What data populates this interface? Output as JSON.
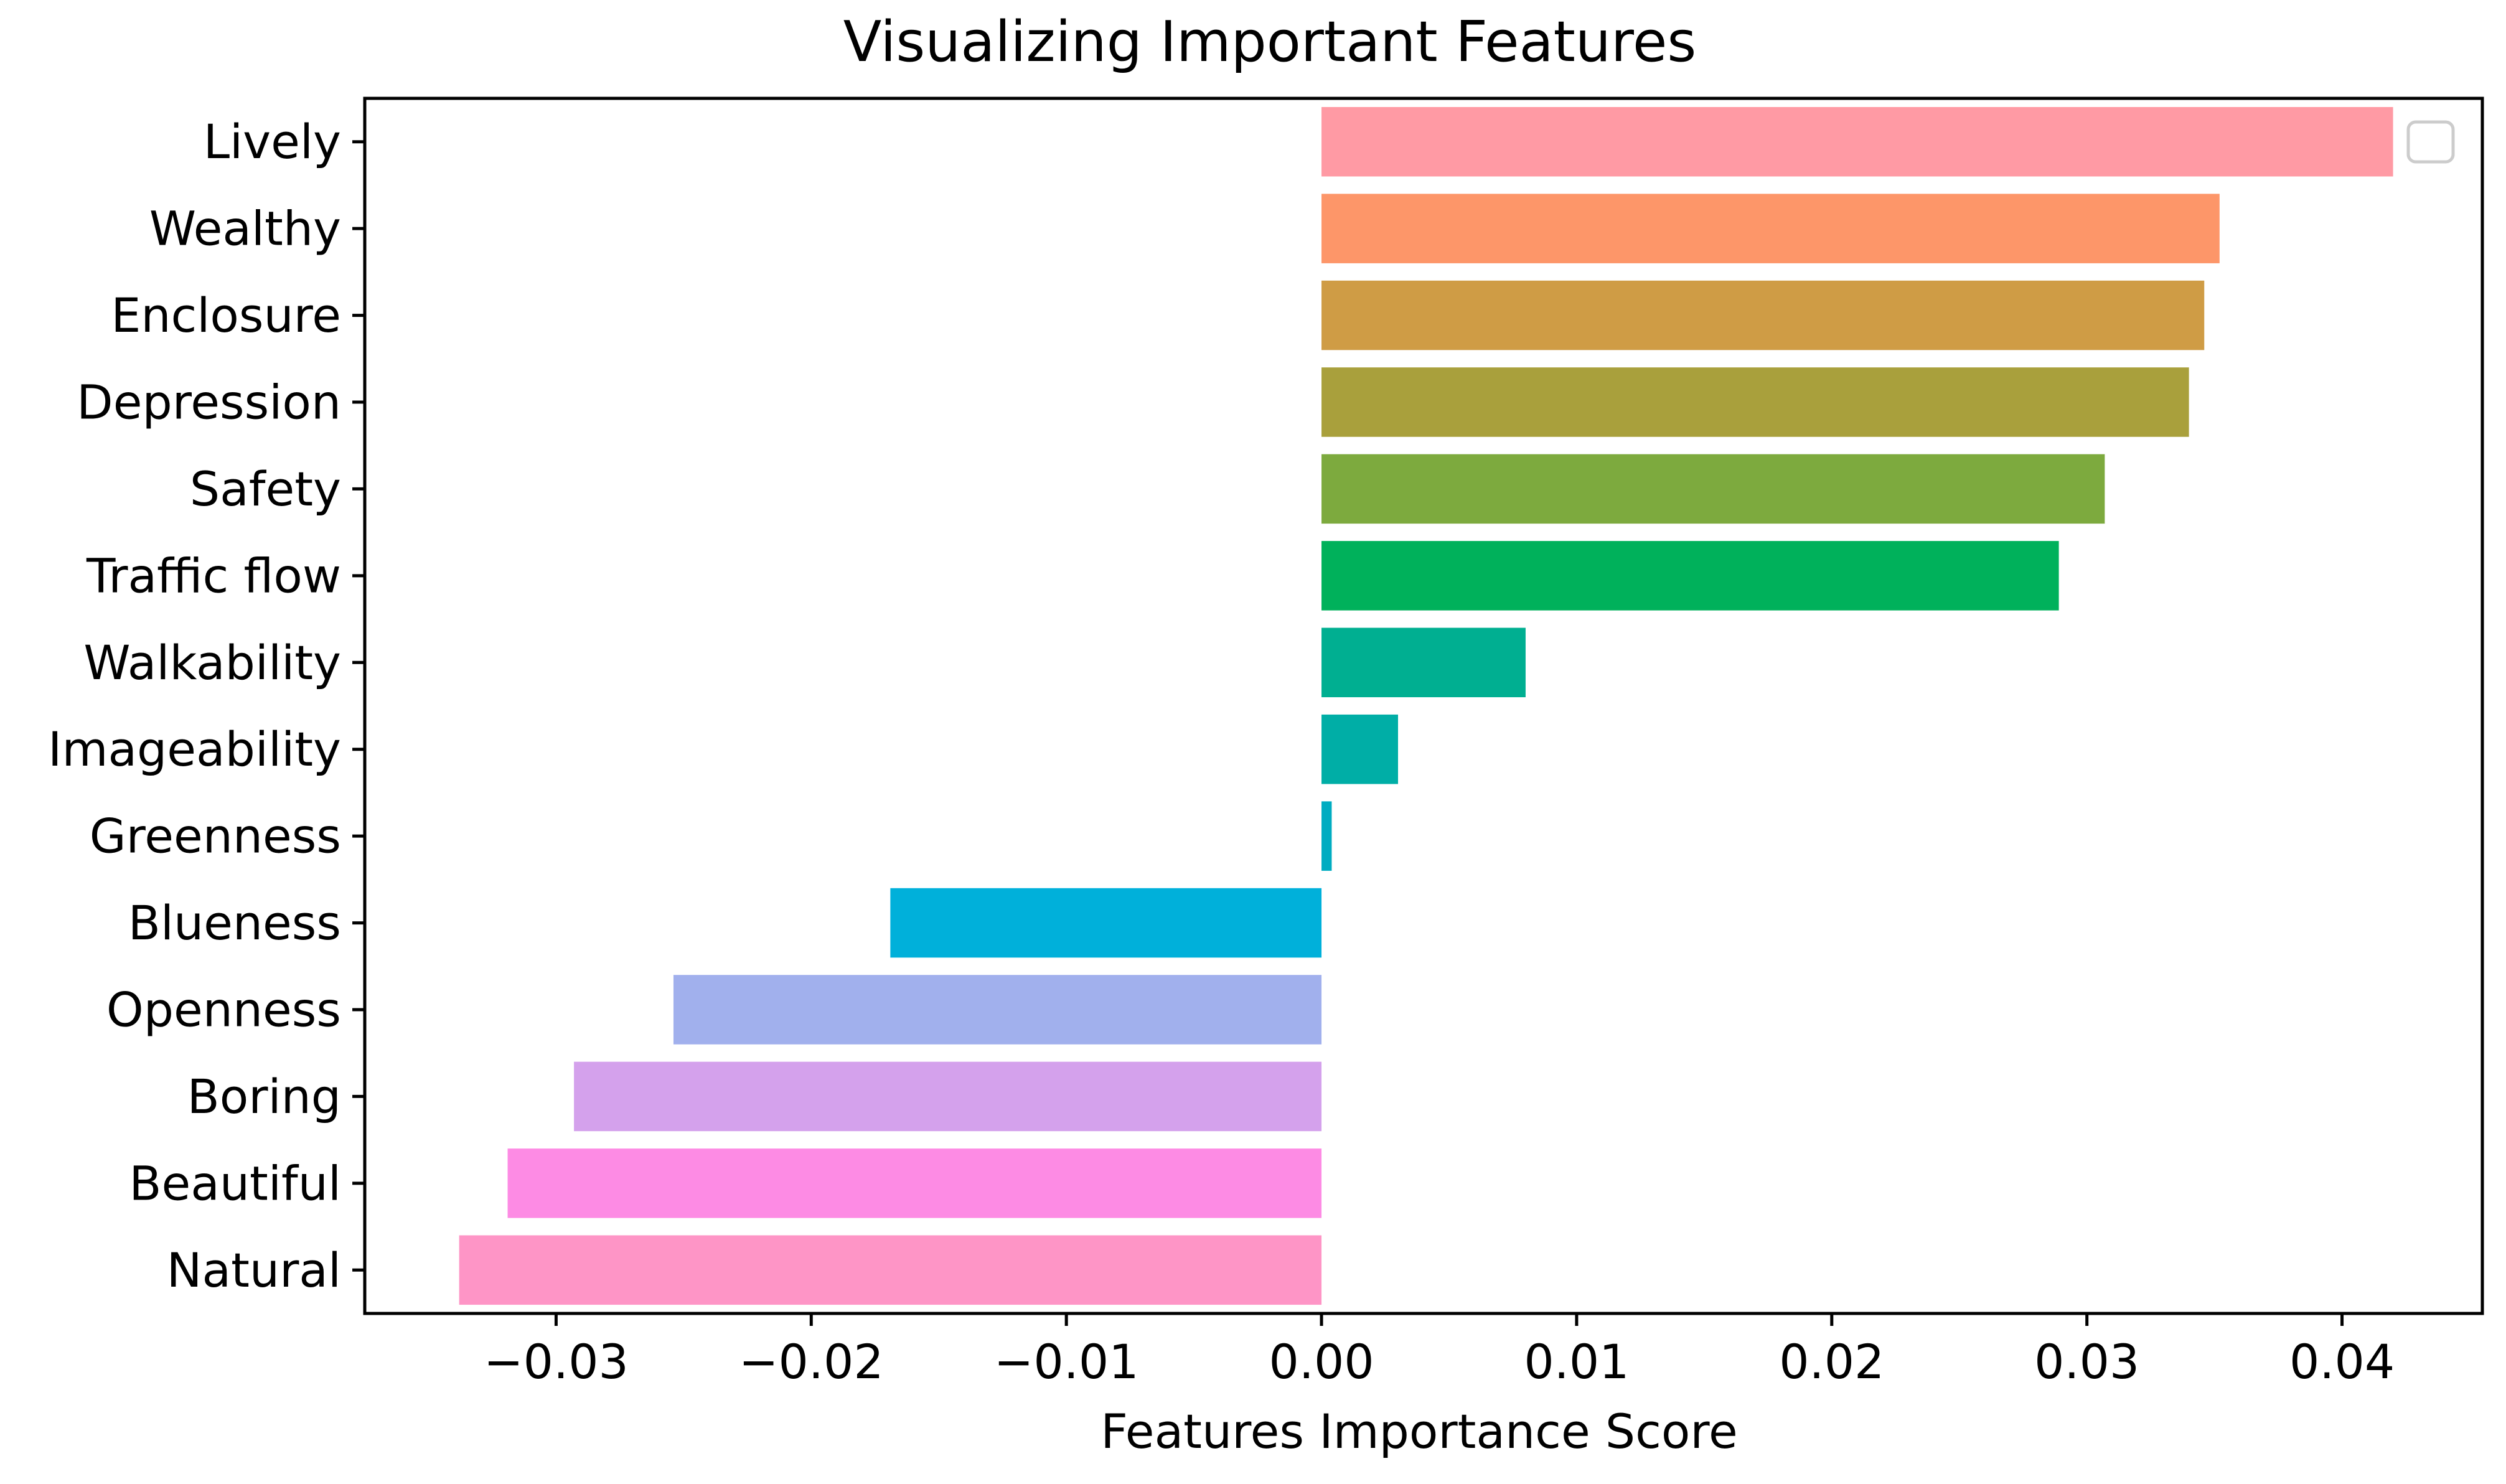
{
  "chart_data": {
    "type": "bar",
    "orientation": "horizontal",
    "title": "Visualizing Important Features",
    "xlabel": "Features Importance Score",
    "ylabel": "",
    "xlim": [
      -0.0375,
      0.0455
    ],
    "xticks": [
      -0.03,
      -0.02,
      -0.01,
      0.0,
      0.01,
      0.02,
      0.03,
      0.04
    ],
    "xtick_labels": [
      "−0.03",
      "−0.02",
      "−0.01",
      "0.00",
      "0.01",
      "0.02",
      "0.03",
      "0.04"
    ],
    "grid": false,
    "legend": "top-right",
    "categories": [
      "Lively",
      "Wealthy",
      "Enclosure",
      "Depression",
      "Safety",
      "Traffic flow",
      "Walkability",
      "Imageability",
      "Greenness",
      "Blueness",
      "Openness",
      "Boring",
      "Beautiful",
      "Natural"
    ],
    "values": [
      0.042,
      0.0352,
      0.0346,
      0.034,
      0.0307,
      0.0289,
      0.008,
      0.003,
      0.0004,
      -0.0169,
      -0.0254,
      -0.0293,
      -0.0319,
      -0.0338
    ],
    "colors": [
      "#ff9aa4",
      "#fd9669",
      "#cf9c45",
      "#a9a03c",
      "#7daa3e",
      "#00b15b",
      "#00af91",
      "#00aea6",
      "#00acc1",
      "#00b0da",
      "#a1b0ed",
      "#d4a1ec",
      "#fd8be4",
      "#fe95c6"
    ]
  }
}
